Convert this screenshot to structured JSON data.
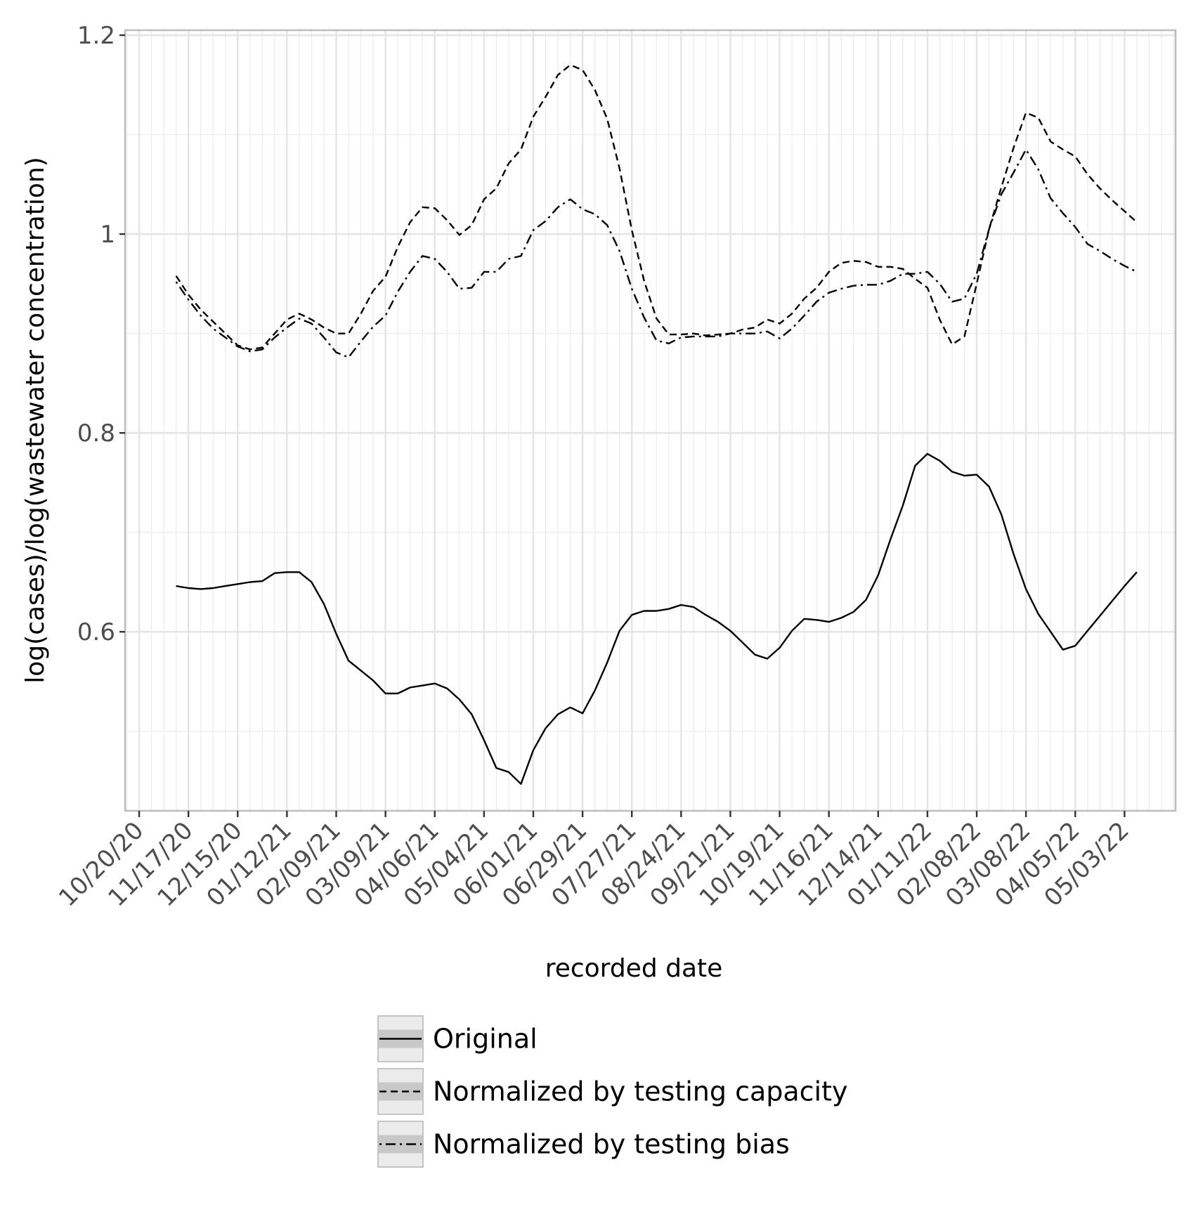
{
  "chart_data": {
    "type": "line",
    "xlabel": "recorded date",
    "ylabel": "log(cases)/log(wastewater concentration)",
    "x_ticks": [
      "10/20/20",
      "11/17/20",
      "12/15/20",
      "01/12/21",
      "02/09/21",
      "03/09/21",
      "04/06/21",
      "05/04/21",
      "06/01/21",
      "06/29/21",
      "07/27/21",
      "08/24/21",
      "09/21/21",
      "10/19/21",
      "11/16/21",
      "12/14/21",
      "01/11/22",
      "02/08/22",
      "03/08/22",
      "04/05/22",
      "05/03/22"
    ],
    "y_ticks": [
      0.6,
      0.8,
      1,
      1.2
    ],
    "y_tick_labels": [
      "0.6",
      "0.8",
      "1",
      "1.2"
    ],
    "xlim": [
      "2020-10-12",
      "2022-06-01"
    ],
    "ylim": [
      0.42,
      1.205
    ],
    "grid": true,
    "legend_position": "bottom",
    "series": [
      {
        "name": "Original",
        "linetype": "solid",
        "dates": [
          "2020-11-10",
          "2020-11-17",
          "2020-11-24",
          "2020-12-01",
          "2020-12-08",
          "2020-12-15",
          "2020-12-22",
          "2020-12-29",
          "2021-01-05",
          "2021-01-12",
          "2021-01-19",
          "2021-01-26",
          "2021-02-02",
          "2021-02-09",
          "2021-02-16",
          "2021-02-23",
          "2021-03-02",
          "2021-03-09",
          "2021-03-16",
          "2021-03-23",
          "2021-03-30",
          "2021-04-06",
          "2021-04-13",
          "2021-04-20",
          "2021-04-27",
          "2021-05-04",
          "2021-05-11",
          "2021-05-18",
          "2021-05-25",
          "2021-06-01",
          "2021-06-08",
          "2021-06-15",
          "2021-06-22",
          "2021-06-29",
          "2021-07-06",
          "2021-07-13",
          "2021-07-20",
          "2021-07-27",
          "2021-08-03",
          "2021-08-10",
          "2021-08-17",
          "2021-08-24",
          "2021-08-31",
          "2021-09-07",
          "2021-09-14",
          "2021-09-21",
          "2021-09-28",
          "2021-10-05",
          "2021-10-12",
          "2021-10-19",
          "2021-10-26",
          "2021-11-02",
          "2021-11-09",
          "2021-11-16",
          "2021-11-23",
          "2021-11-30",
          "2021-12-07",
          "2021-12-14",
          "2021-12-21",
          "2021-12-28",
          "2022-01-04",
          "2022-01-11",
          "2022-01-18",
          "2022-01-25",
          "2022-02-01",
          "2022-02-08",
          "2022-02-15",
          "2022-02-22",
          "2022-03-01",
          "2022-03-08",
          "2022-03-15",
          "2022-03-22",
          "2022-03-29",
          "2022-04-05",
          "2022-04-12",
          "2022-04-19",
          "2022-04-26",
          "2022-05-03",
          "2022-05-10"
        ],
        "values": [
          0.646,
          0.644,
          0.643,
          0.644,
          0.646,
          0.648,
          0.65,
          0.651,
          0.659,
          0.66,
          0.66,
          0.65,
          0.628,
          0.598,
          0.571,
          0.561,
          0.551,
          0.538,
          0.538,
          0.544,
          0.546,
          0.548,
          0.543,
          0.532,
          0.517,
          0.491,
          0.463,
          0.459,
          0.447,
          0.481,
          0.503,
          0.517,
          0.524,
          0.518,
          0.541,
          0.569,
          0.601,
          0.617,
          0.621,
          0.621,
          0.623,
          0.627,
          0.625,
          0.617,
          0.61,
          0.601,
          0.589,
          0.577,
          0.573,
          0.584,
          0.601,
          0.613,
          0.612,
          0.61,
          0.614,
          0.62,
          0.632,
          0.657,
          0.693,
          0.727,
          0.767,
          0.779,
          0.772,
          0.761,
          0.757,
          0.758,
          0.746,
          0.718,
          0.678,
          0.643,
          0.618,
          0.6,
          0.582,
          0.586,
          0.601,
          0.616,
          0.631,
          0.646,
          0.66
        ]
      },
      {
        "name": "Normalized by testing capacity",
        "linetype": "dashed",
        "dates": [
          "2020-11-10",
          "2020-11-17",
          "2020-11-24",
          "2020-12-01",
          "2020-12-08",
          "2020-12-15",
          "2020-12-22",
          "2020-12-29",
          "2021-01-05",
          "2021-01-12",
          "2021-01-19",
          "2021-01-26",
          "2021-02-02",
          "2021-02-09",
          "2021-02-16",
          "2021-02-23",
          "2021-03-02",
          "2021-03-09",
          "2021-03-16",
          "2021-03-23",
          "2021-03-30",
          "2021-04-06",
          "2021-04-13",
          "2021-04-20",
          "2021-04-27",
          "2021-05-04",
          "2021-05-11",
          "2021-05-18",
          "2021-05-25",
          "2021-06-01",
          "2021-06-08",
          "2021-06-15",
          "2021-06-22",
          "2021-06-29",
          "2021-07-06",
          "2021-07-13",
          "2021-07-20",
          "2021-07-27",
          "2021-08-03",
          "2021-08-10",
          "2021-08-17",
          "2021-08-24",
          "2021-08-31",
          "2021-09-07",
          "2021-09-14",
          "2021-09-21",
          "2021-09-28",
          "2021-10-05",
          "2021-10-12",
          "2021-10-19",
          "2021-10-26",
          "2021-11-02",
          "2021-11-09",
          "2021-11-16",
          "2021-11-23",
          "2021-11-30",
          "2021-12-07",
          "2021-12-14",
          "2021-12-21",
          "2021-12-28",
          "2022-01-04",
          "2022-01-11",
          "2022-01-18",
          "2022-01-25",
          "2022-02-01",
          "2022-02-08",
          "2022-02-15",
          "2022-02-22",
          "2022-03-01",
          "2022-03-08",
          "2022-03-15",
          "2022-03-22",
          "2022-03-29",
          "2022-04-05",
          "2022-04-12",
          "2022-04-19",
          "2022-04-26",
          "2022-05-03",
          "2022-05-10"
        ],
        "values": [
          0.958,
          0.939,
          0.924,
          0.912,
          0.9,
          0.888,
          0.884,
          0.886,
          0.9,
          0.914,
          0.92,
          0.914,
          0.906,
          0.9,
          0.9,
          0.92,
          0.943,
          0.957,
          0.987,
          1.012,
          1.027,
          1.026,
          1.014,
          0.999,
          1.009,
          1.035,
          1.046,
          1.071,
          1.085,
          1.118,
          1.138,
          1.16,
          1.17,
          1.165,
          1.145,
          1.116,
          1.066,
          1.004,
          0.953,
          0.915,
          0.899,
          0.899,
          0.9,
          0.898,
          0.899,
          0.9,
          0.904,
          0.906,
          0.914,
          0.91,
          0.92,
          0.935,
          0.946,
          0.962,
          0.971,
          0.973,
          0.972,
          0.967,
          0.967,
          0.965,
          0.955,
          0.946,
          0.914,
          0.889,
          0.897,
          0.95,
          1.005,
          1.047,
          1.087,
          1.122,
          1.117,
          1.093,
          1.085,
          1.078,
          1.06,
          1.046,
          1.034,
          1.023,
          1.012
        ]
      },
      {
        "name": "Normalized by testing bias",
        "linetype": "dotdash",
        "dates": [
          "2020-11-10",
          "2020-11-17",
          "2020-11-24",
          "2020-12-01",
          "2020-12-08",
          "2020-12-15",
          "2020-12-22",
          "2020-12-29",
          "2021-01-05",
          "2021-01-12",
          "2021-01-19",
          "2021-01-26",
          "2021-02-02",
          "2021-02-09",
          "2021-02-16",
          "2021-02-23",
          "2021-03-02",
          "2021-03-09",
          "2021-03-16",
          "2021-03-23",
          "2021-03-30",
          "2021-04-06",
          "2021-04-13",
          "2021-04-20",
          "2021-04-27",
          "2021-05-04",
          "2021-05-11",
          "2021-05-18",
          "2021-05-25",
          "2021-06-01",
          "2021-06-08",
          "2021-06-15",
          "2021-06-22",
          "2021-06-29",
          "2021-07-06",
          "2021-07-13",
          "2021-07-20",
          "2021-07-27",
          "2021-08-03",
          "2021-08-10",
          "2021-08-17",
          "2021-08-24",
          "2021-08-31",
          "2021-09-07",
          "2021-09-14",
          "2021-09-21",
          "2021-09-28",
          "2021-10-05",
          "2021-10-12",
          "2021-10-19",
          "2021-10-26",
          "2021-11-02",
          "2021-11-09",
          "2021-11-16",
          "2021-11-23",
          "2021-11-30",
          "2021-12-07",
          "2021-12-14",
          "2021-12-21",
          "2021-12-28",
          "2022-01-04",
          "2022-01-11",
          "2022-01-18",
          "2022-01-25",
          "2022-02-01",
          "2022-02-08",
          "2022-02-15",
          "2022-02-22",
          "2022-03-01",
          "2022-03-08",
          "2022-03-15",
          "2022-03-22",
          "2022-03-29",
          "2022-04-05",
          "2022-04-12",
          "2022-04-19",
          "2022-04-26",
          "2022-05-03",
          "2022-05-10"
        ],
        "values": [
          0.952,
          0.934,
          0.918,
          0.905,
          0.896,
          0.887,
          0.882,
          0.884,
          0.896,
          0.906,
          0.915,
          0.91,
          0.896,
          0.881,
          0.876,
          0.892,
          0.907,
          0.918,
          0.942,
          0.962,
          0.978,
          0.975,
          0.962,
          0.945,
          0.946,
          0.962,
          0.962,
          0.975,
          0.978,
          1.004,
          1.013,
          1.027,
          1.035,
          1.025,
          1.02,
          1.009,
          0.983,
          0.945,
          0.916,
          0.893,
          0.89,
          0.896,
          0.897,
          0.897,
          0.897,
          0.9,
          0.9,
          0.9,
          0.902,
          0.895,
          0.905,
          0.918,
          0.932,
          0.941,
          0.945,
          0.948,
          0.949,
          0.949,
          0.953,
          0.96,
          0.96,
          0.962,
          0.95,
          0.932,
          0.935,
          0.96,
          1.005,
          1.04,
          1.062,
          1.085,
          1.065,
          1.036,
          1.021,
          1.007,
          0.99,
          0.983,
          0.975,
          0.968,
          0.962
        ]
      }
    ]
  }
}
